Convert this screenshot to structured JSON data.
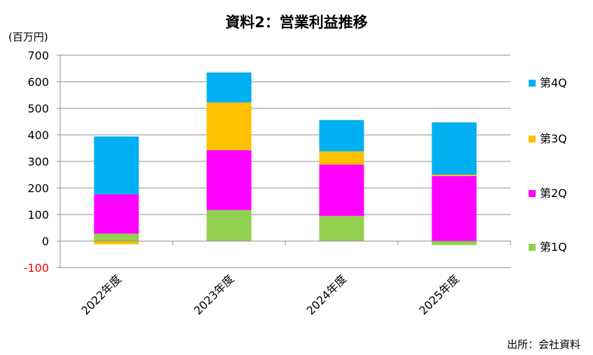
{
  "chart_data": {
    "type": "bar",
    "stacked": true,
    "title": "資料2：営業利益推移",
    "ylabel": "(百万円)",
    "source": "出所：会社資料",
    "categories": [
      "2022年度",
      "2023年度",
      "2024年度",
      "2025年度"
    ],
    "ylim": [
      -100,
      700
    ],
    "yticks": [
      "-100",
      "0",
      "100",
      "200",
      "300",
      "400",
      "500",
      "600",
      "700"
    ],
    "grid": true,
    "legend_position": "right",
    "series": [
      {
        "name": "第1Q",
        "color": "#92D050",
        "values": [
          28,
          117,
          95,
          -15
        ]
      },
      {
        "name": "第2Q",
        "color": "#FF00FF",
        "values": [
          148,
          225,
          193,
          245
        ]
      },
      {
        "name": "第3Q",
        "color": "#FFC000",
        "values": [
          -12,
          180,
          50,
          5
        ]
      },
      {
        "name": "第4Q",
        "color": "#00B0F0",
        "values": [
          218,
          113,
          118,
          197
        ]
      }
    ],
    "negative_tick_color": "#FF0000"
  }
}
